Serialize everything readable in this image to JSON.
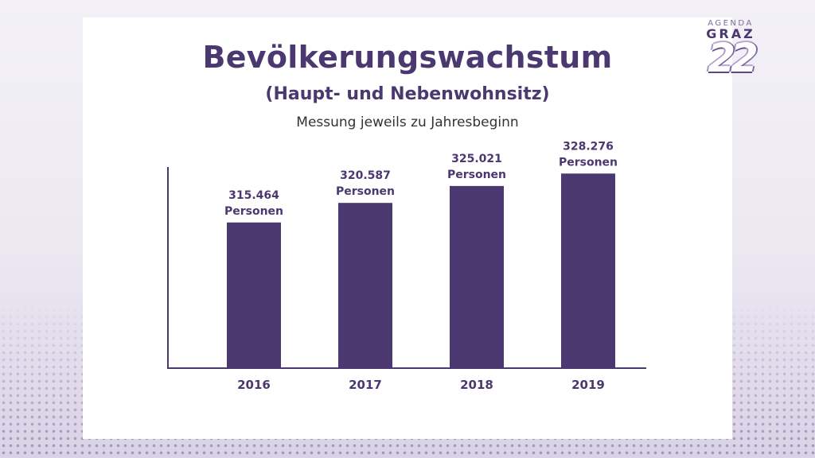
{
  "header": {
    "title": "Bevölkerungswachstum",
    "subtitle": "(Haupt- und Nebenwohnsitz)",
    "caption": "Messung jeweils zu Jahresbeginn"
  },
  "logo": {
    "line1": "AGENDA",
    "line2": "GRAZ",
    "number": "22"
  },
  "colors": {
    "bar": "#4b3870",
    "title": "#4b3870",
    "axis": "#4b3870"
  },
  "chart_data": {
    "type": "bar",
    "categories": [
      "2016",
      "2017",
      "2018",
      "2019"
    ],
    "values": [
      315464,
      320587,
      325021,
      328276
    ],
    "data_labels": [
      [
        "315.464",
        "Personen"
      ],
      [
        "320.587",
        "Personen"
      ],
      [
        "325.021",
        "Personen"
      ],
      [
        "328.276",
        "Personen"
      ]
    ],
    "title": "Bevölkerungswachstum",
    "xlabel": "",
    "ylabel": "",
    "ylim": [
      277500,
      330000
    ],
    "grid": false,
    "legend": "none"
  }
}
